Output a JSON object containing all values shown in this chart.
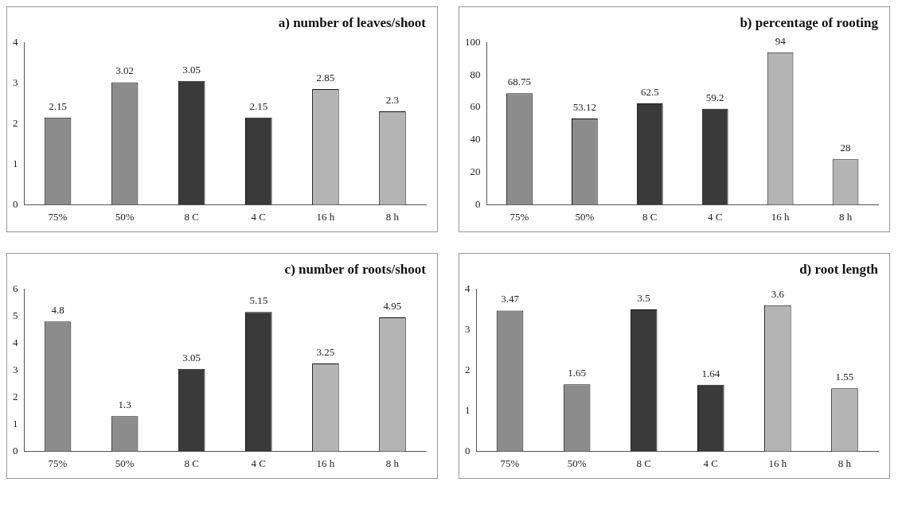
{
  "chart_data": [
    {
      "type": "bar",
      "title": "a) number of leaves/shoot",
      "categories": [
        "75%",
        "50%",
        "8 C",
        "4 C",
        "16 h",
        "8 h"
      ],
      "values": [
        2.15,
        3.02,
        3.05,
        2.15,
        2.85,
        2.3
      ],
      "colors": [
        "#8c8c8c",
        "#8c8c8c",
        "#3a3a3a",
        "#3a3a3a",
        "#b4b4b4",
        "#b4b4b4"
      ],
      "ylim": [
        0,
        4
      ],
      "yticks": [
        0,
        1,
        2,
        3,
        4
      ],
      "grid": false,
      "data_labels": true
    },
    {
      "type": "bar",
      "title": "b) percentage of rooting",
      "categories": [
        "75%",
        "50%",
        "8 C",
        "4 C",
        "16 h",
        "8 h"
      ],
      "values": [
        68.75,
        53.12,
        62.5,
        59.2,
        94,
        28
      ],
      "colors": [
        "#8c8c8c",
        "#8c8c8c",
        "#3a3a3a",
        "#3a3a3a",
        "#b4b4b4",
        "#b4b4b4"
      ],
      "ylim": [
        0,
        100
      ],
      "yticks": [
        0,
        20,
        40,
        60,
        80,
        100
      ],
      "grid": false,
      "data_labels": true
    },
    {
      "type": "bar",
      "title": "c) number of roots/shoot",
      "categories": [
        "75%",
        "50%",
        "8 C",
        "4 C",
        "16 h",
        "8 h"
      ],
      "values": [
        4.8,
        1.3,
        3.05,
        5.15,
        3.25,
        4.95
      ],
      "colors": [
        "#8c8c8c",
        "#8c8c8c",
        "#3a3a3a",
        "#3a3a3a",
        "#b4b4b4",
        "#b4b4b4"
      ],
      "ylim": [
        0,
        6
      ],
      "yticks": [
        0,
        1,
        2,
        3,
        4,
        5,
        6
      ],
      "grid": false,
      "data_labels": true
    },
    {
      "type": "bar",
      "title": "d) root length",
      "categories": [
        "75%",
        "50%",
        "8 C",
        "4 C",
        "16 h",
        "8 h"
      ],
      "values": [
        3.47,
        1.65,
        3.5,
        1.64,
        3.6,
        1.55
      ],
      "colors": [
        "#8c8c8c",
        "#8c8c8c",
        "#3a3a3a",
        "#3a3a3a",
        "#b4b4b4",
        "#b4b4b4"
      ],
      "ylim": [
        0,
        4
      ],
      "yticks": [
        0,
        1,
        2,
        3,
        4
      ],
      "grid": false,
      "data_labels": true
    }
  ]
}
